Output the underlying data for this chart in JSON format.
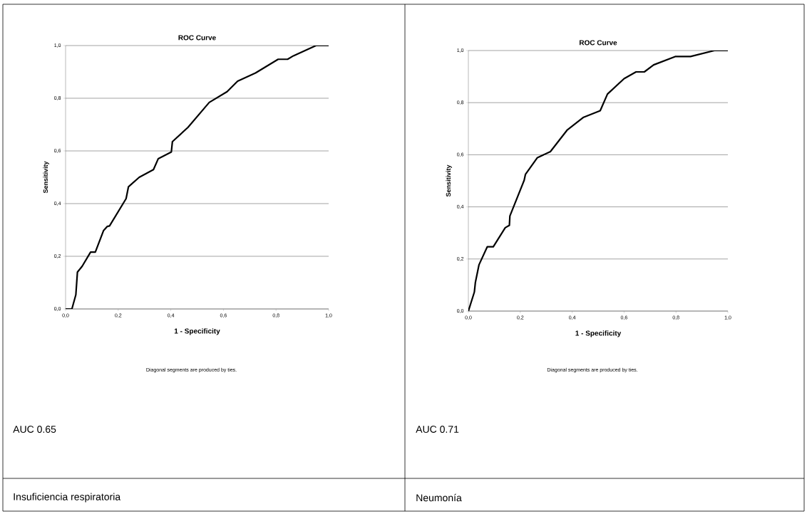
{
  "chart_data": [
    {
      "type": "line",
      "title": "ROC Curve",
      "xlabel": "1 - Specificity",
      "ylabel": "Sensitivity",
      "annotations": [
        "Diagonal segments are produced by ties.",
        "AUC 0.65",
        "Insuficiencia respiratoria"
      ],
      "x": [
        0,
        0.024,
        0.039,
        0.045,
        0.063,
        0.095,
        0.113,
        0.144,
        0.158,
        0.167,
        0.23,
        0.239,
        0.28,
        0.334,
        0.352,
        0.402,
        0.406,
        0.465,
        0.546,
        0.614,
        0.654,
        0.722,
        0.808,
        0.844,
        0.866,
        0.952,
        1
      ],
      "series": [
        {
          "color": "#000000",
          "values": [
            0,
            0,
            0.054,
            0.14,
            0.162,
            0.216,
            0.216,
            0.297,
            0.313,
            0.315,
            0.419,
            0.464,
            0.5,
            0.529,
            0.57,
            0.596,
            0.635,
            0.689,
            0.784,
            0.825,
            0.865,
            0.896,
            0.948,
            0.948,
            0.961,
            1,
            1
          ]
        }
      ],
      "xlim": [
        0,
        1
      ],
      "ylim": [
        0,
        1
      ],
      "xticks": [
        {
          "value": 0,
          "label": "0,0"
        },
        {
          "value": 0.2,
          "label": "0,2"
        },
        {
          "value": 0.4,
          "label": "0,4"
        },
        {
          "value": 0.6,
          "label": "0,6"
        },
        {
          "value": 0.8,
          "label": "0,8"
        },
        {
          "value": 1,
          "label": "1,0"
        }
      ],
      "yticks": [
        {
          "value": 0,
          "label": "0,0"
        },
        {
          "value": 0.2,
          "label": "0,2"
        },
        {
          "value": 0.4,
          "label": "0,4"
        },
        {
          "value": 0.6,
          "label": "0,6"
        },
        {
          "value": 0.8,
          "label": "0,8"
        },
        {
          "value": 1,
          "label": "1,0"
        }
      ],
      "grid": "y"
    },
    {
      "type": "line",
      "title": "ROC Curve",
      "xlabel": "1 - Specificity",
      "ylabel": "Sensitivity",
      "annotations": [
        "Diagonal segments are produced by ties.",
        "AUC 0.71",
        "Neumonía"
      ],
      "x": [
        0,
        0.023,
        0.027,
        0.041,
        0.073,
        0.096,
        0.142,
        0.158,
        0.16,
        0.215,
        0.22,
        0.266,
        0.316,
        0.38,
        0.444,
        0.508,
        0.536,
        0.6,
        0.646,
        0.678,
        0.714,
        0.797,
        0.856,
        0.948,
        1
      ],
      "series": [
        {
          "color": "#000000",
          "values": [
            0,
            0.073,
            0.11,
            0.178,
            0.247,
            0.247,
            0.32,
            0.329,
            0.365,
            0.502,
            0.525,
            0.589,
            0.612,
            0.694,
            0.744,
            0.769,
            0.833,
            0.892,
            0.918,
            0.918,
            0.945,
            0.977,
            0.977,
            1,
            1
          ]
        }
      ],
      "xlim": [
        0,
        1
      ],
      "ylim": [
        0,
        1
      ],
      "xticks": [
        {
          "value": 0,
          "label": "0,0"
        },
        {
          "value": 0.2,
          "label": "0,2"
        },
        {
          "value": 0.4,
          "label": "0,4"
        },
        {
          "value": 0.6,
          "label": "0,6"
        },
        {
          "value": 0.8,
          "label": "0,8"
        },
        {
          "value": 1,
          "label": "1,0"
        }
      ],
      "yticks": [
        {
          "value": 0,
          "label": "0,0"
        },
        {
          "value": 0.2,
          "label": "0,2"
        },
        {
          "value": 0.4,
          "label": "0,4"
        },
        {
          "value": 0.6,
          "label": "0,6"
        },
        {
          "value": 0.8,
          "label": "0,8"
        },
        {
          "value": 1,
          "label": "1,0"
        }
      ],
      "grid": "y"
    }
  ]
}
